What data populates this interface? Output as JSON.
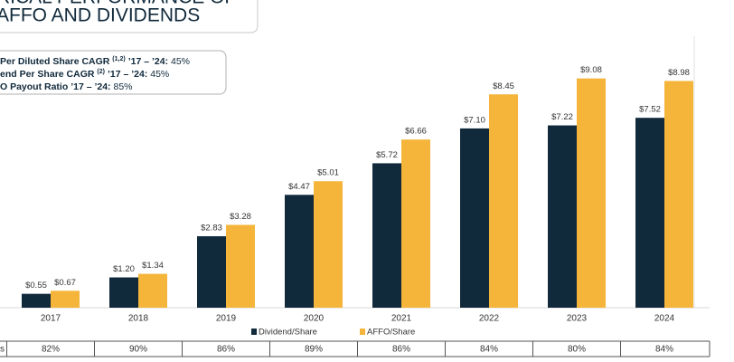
{
  "header": {
    "title_lines": [
      "RICAL PERFORMANCE OF",
      "AFFO AND DIVIDENDS"
    ]
  },
  "stats": [
    {
      "label": "Per Diluted Share CAGR",
      "note": "(1,2)",
      "period": "’17 – ’24:",
      "value": "45%"
    },
    {
      "label": "end Per Share CAGR",
      "note": "(2)",
      "period": "’17 – ’24:",
      "value": "45%"
    },
    {
      "label": "O Payout Ratio",
      "note": null,
      "period": "’17 – ’24:",
      "value": "85%"
    }
  ],
  "chart_data": {
    "type": "bar",
    "categories": [
      "2017",
      "2018",
      "2019",
      "2020",
      "2021",
      "2022",
      "2023",
      "2024"
    ],
    "series": [
      {
        "name": "Dividend/Share",
        "color": "#10293b",
        "values": [
          0.55,
          1.2,
          2.83,
          4.47,
          5.72,
          7.1,
          7.22,
          7.52
        ],
        "value_labels": [
          "$0.55",
          "$1.20",
          "$2.83",
          "$4.47",
          "$5.72",
          "$7.10",
          "$7.22",
          "$7.52"
        ]
      },
      {
        "name": "AFFO/Share",
        "color": "#f4b53a",
        "values": [
          0.67,
          1.34,
          3.28,
          5.01,
          6.66,
          8.45,
          9.08,
          8.98
        ],
        "value_labels": [
          "$0.67",
          "$1.34",
          "$3.28",
          "$5.01",
          "$6.66",
          "$8.45",
          "$9.08",
          "$8.98"
        ]
      }
    ]
  },
  "table": {
    "label": "s",
    "cells": [
      "82%",
      "90%",
      "86%",
      "89%",
      "86%",
      "84%",
      "80%",
      "84%"
    ]
  }
}
